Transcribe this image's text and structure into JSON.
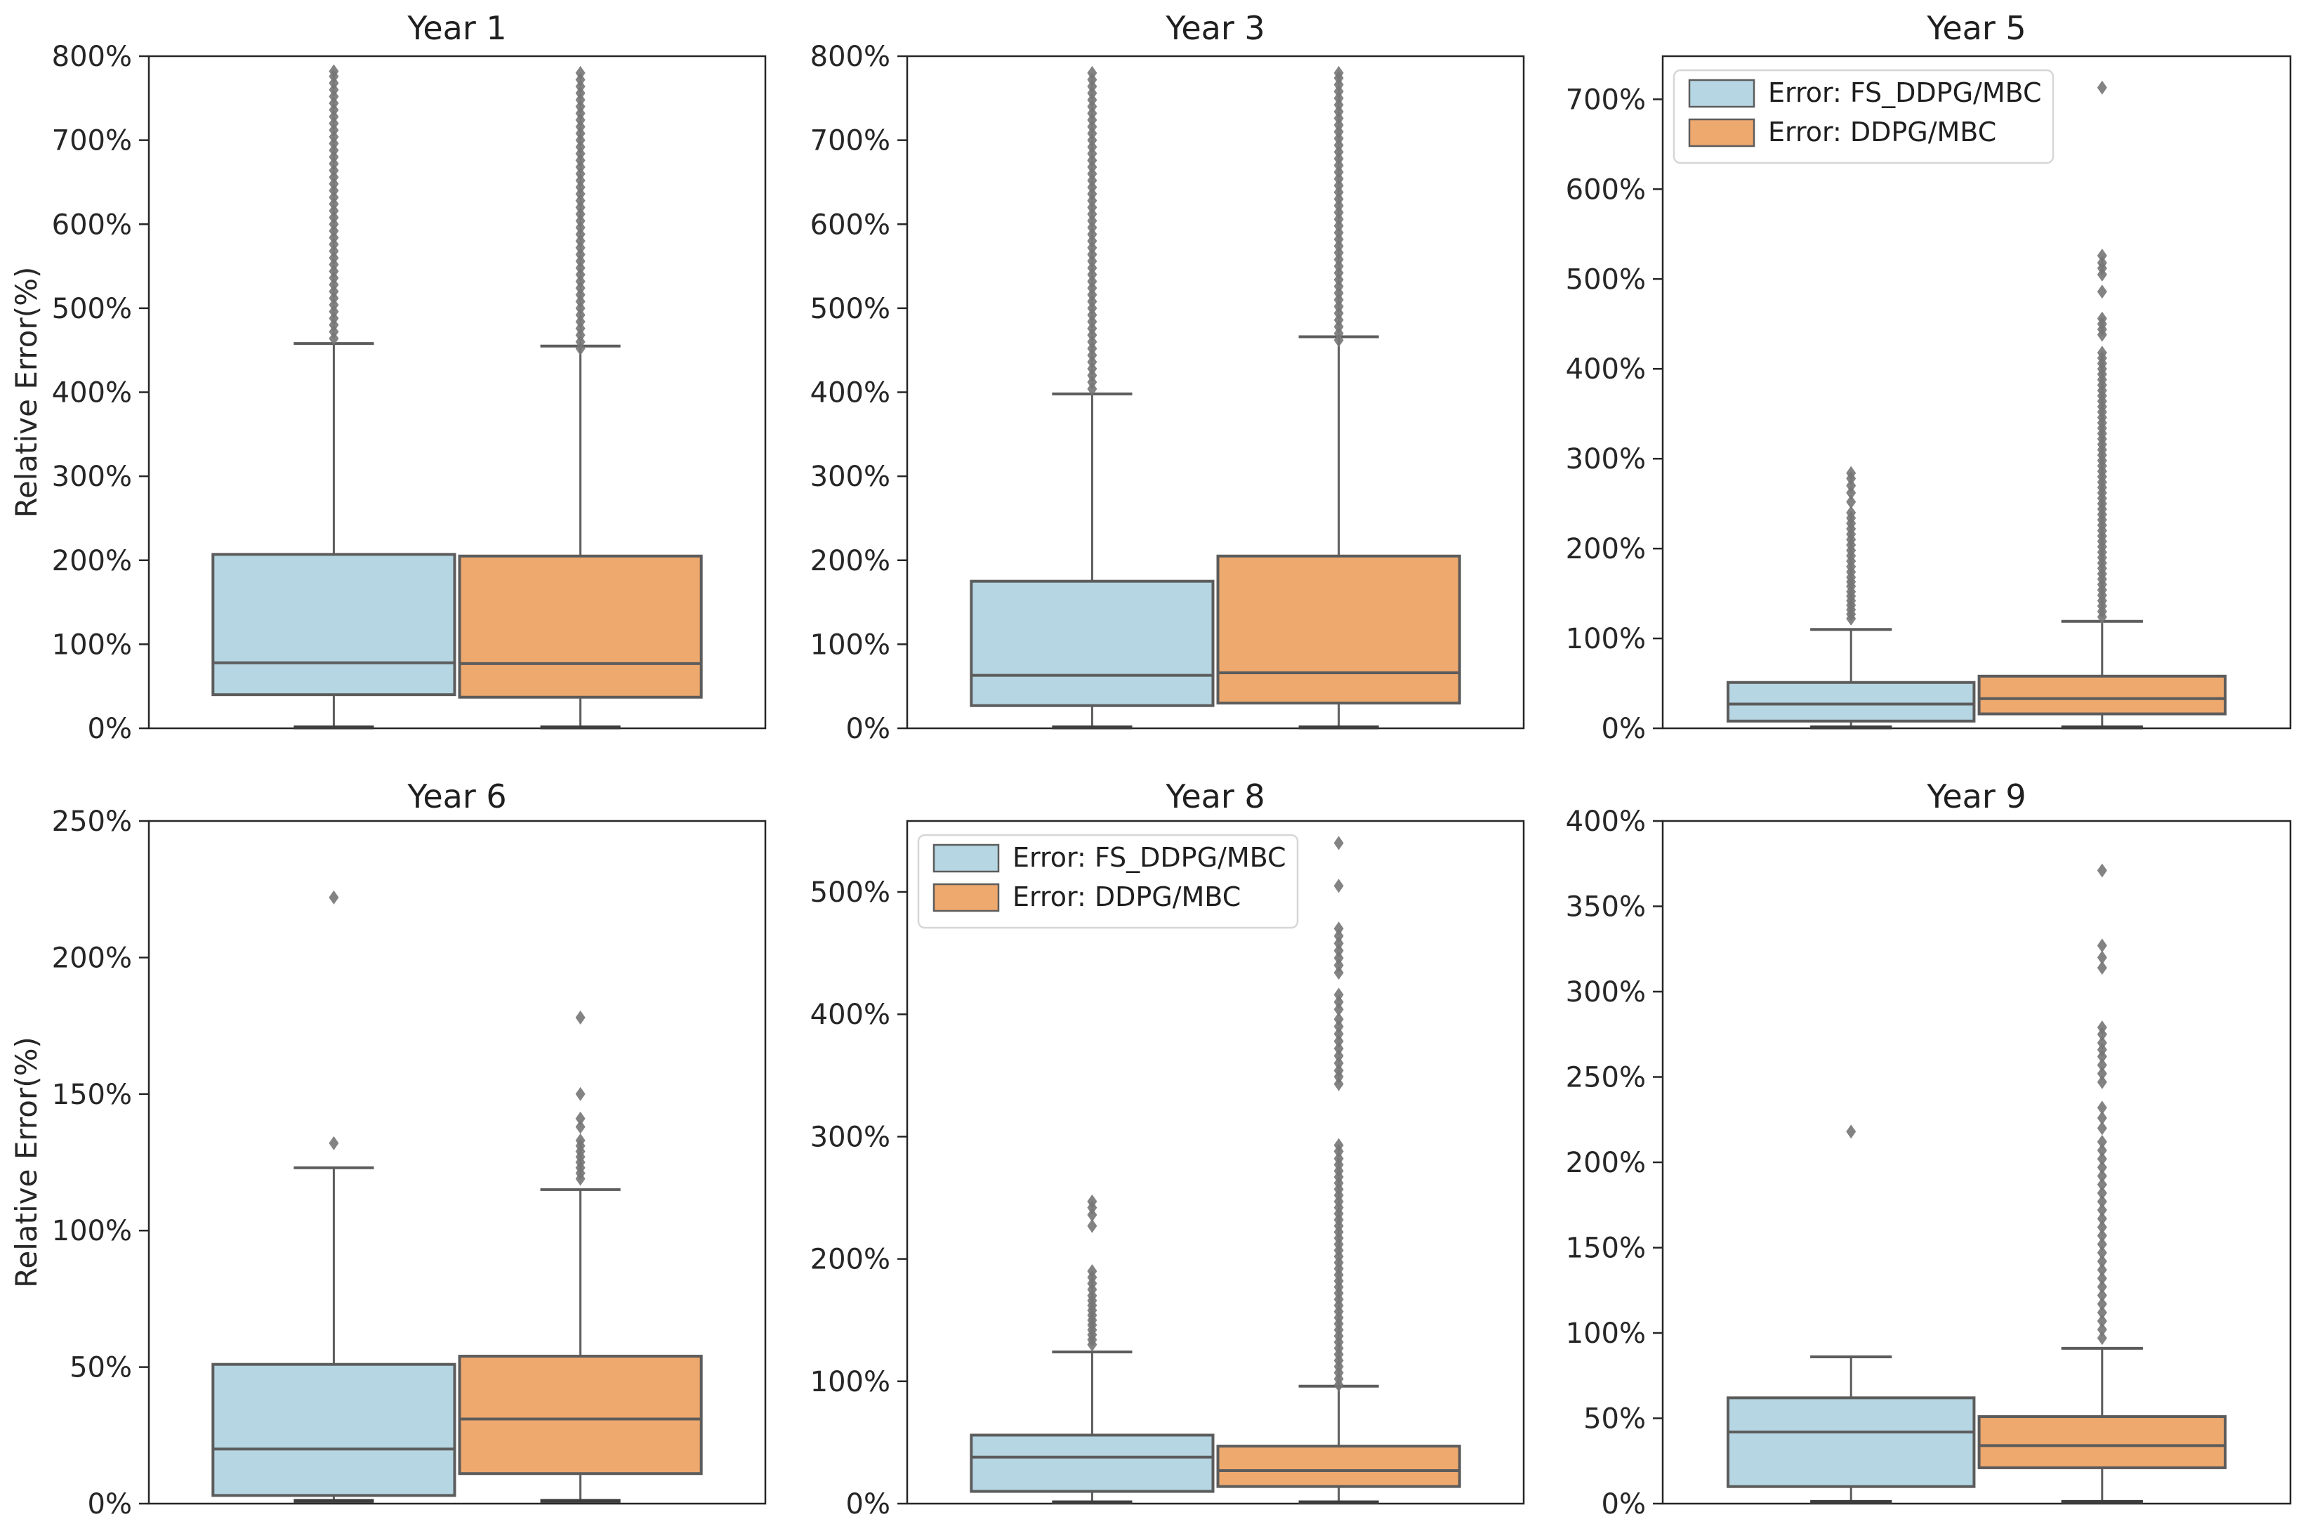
{
  "figure": {
    "kind": "boxplot-grid",
    "rows": 2,
    "cols": 3,
    "background": "#ffffff",
    "y_axis_label": "Relative Error(%)"
  },
  "colors": {
    "series_fs_ddpg_fill": "#B5D6E2",
    "series_ddpg_fill": "#EEA96E",
    "box_edge": "#5C5C5C",
    "whisker": "#5C5C5C",
    "median": "#5C5C5C",
    "bottom_cap": "#3D3D3D",
    "outlier": "#757575",
    "spine": "#262626",
    "text": "#262626",
    "legend_border": "#D6D6D6",
    "legend_background": "#FFFFFF"
  },
  "legend": {
    "position": "upper-left",
    "entries": [
      {
        "label": "Error: FS_DDPG/MBC",
        "swatch_color": "#B5D6E2"
      },
      {
        "label": "Error: DDPG/MBC",
        "swatch_color": "#EEA96E"
      }
    ]
  },
  "chart_data": [
    {
      "type": "box",
      "title": "Year 1",
      "ylabel": "Relative Error(%)",
      "ylim": [
        0,
        800
      ],
      "yticks": [
        0,
        100,
        200,
        300,
        400,
        500,
        600,
        700,
        800
      ],
      "ytick_labels": [
        "0%",
        "100%",
        "200%",
        "300%",
        "400%",
        "500%",
        "600%",
        "700%",
        "800%"
      ],
      "show_legend": false,
      "series": [
        {
          "name": "Error: FS_DDPG/MBC",
          "fill": "#B5D6E2",
          "whisker_low": 1,
          "q1": 40,
          "median": 78,
          "q3": 207,
          "whisker_high": 458,
          "outliers": [
            464,
            472,
            480,
            488,
            496,
            504,
            512,
            520,
            528,
            536,
            544,
            552,
            560,
            568,
            576,
            584,
            592,
            600,
            608,
            616,
            624,
            632,
            640,
            648,
            656,
            664,
            672,
            680,
            688,
            696,
            704,
            712,
            720,
            728,
            736,
            744,
            752,
            760,
            768,
            776,
            782
          ]
        },
        {
          "name": "Error: DDPG/MBC",
          "fill": "#EEA96E",
          "whisker_low": 1,
          "q1": 37,
          "median": 77,
          "q3": 205,
          "whisker_high": 455,
          "outliers": [
            452,
            460,
            468,
            476,
            484,
            492,
            500,
            508,
            516,
            524,
            532,
            540,
            548,
            556,
            564,
            572,
            580,
            588,
            596,
            604,
            612,
            620,
            628,
            636,
            644,
            652,
            660,
            668,
            676,
            684,
            692,
            700,
            708,
            716,
            724,
            732,
            740,
            748,
            756,
            764,
            772,
            780
          ]
        }
      ]
    },
    {
      "type": "box",
      "title": "Year 3",
      "ylabel": "",
      "ylim": [
        0,
        800
      ],
      "yticks": [
        0,
        100,
        200,
        300,
        400,
        500,
        600,
        700,
        800
      ],
      "ytick_labels": [
        "0%",
        "100%",
        "200%",
        "300%",
        "400%",
        "500%",
        "600%",
        "700%",
        "800%"
      ],
      "show_legend": false,
      "series": [
        {
          "name": "Error: FS_DDPG/MBC",
          "fill": "#B5D6E2",
          "whisker_low": 1,
          "q1": 27,
          "median": 63,
          "q3": 175,
          "whisker_high": 398,
          "outliers": [
            404,
            412,
            420,
            428,
            436,
            444,
            452,
            460,
            468,
            476,
            484,
            492,
            500,
            508,
            516,
            524,
            532,
            540,
            548,
            556,
            564,
            572,
            580,
            588,
            596,
            604,
            612,
            620,
            628,
            636,
            644,
            652,
            660,
            668,
            676,
            684,
            692,
            700,
            708,
            716,
            724,
            732,
            740,
            748,
            756,
            764,
            772,
            780
          ]
        },
        {
          "name": "Error: DDPG/MBC",
          "fill": "#EEA96E",
          "whisker_low": 1,
          "q1": 30,
          "median": 66,
          "q3": 205,
          "whisker_high": 466,
          "outliers": [
            462,
            470,
            478,
            486,
            494,
            502,
            510,
            518,
            526,
            534,
            542,
            550,
            558,
            566,
            574,
            582,
            590,
            598,
            606,
            614,
            622,
            630,
            638,
            646,
            654,
            662,
            670,
            678,
            686,
            694,
            702,
            710,
            718,
            726,
            734,
            742,
            750,
            758,
            766,
            774,
            780
          ]
        }
      ]
    },
    {
      "type": "box",
      "title": "Year 5",
      "ylabel": "",
      "ylim": [
        0,
        748
      ],
      "yticks": [
        0,
        100,
        200,
        300,
        400,
        500,
        600,
        700
      ],
      "ytick_labels": [
        "0%",
        "100%",
        "200%",
        "300%",
        "400%",
        "500%",
        "600%",
        "700%"
      ],
      "show_legend": true,
      "series": [
        {
          "name": "Error: FS_DDPG/MBC",
          "fill": "#B5D6E2",
          "whisker_low": 1,
          "q1": 8,
          "median": 27,
          "q3": 51,
          "whisker_high": 110,
          "outliers": [
            122,
            127,
            132,
            137,
            142,
            147,
            152,
            158,
            163,
            168,
            174,
            180,
            186,
            192,
            198,
            204,
            210,
            216,
            222,
            228,
            234,
            240,
            252,
            262,
            270,
            278,
            284
          ]
        },
        {
          "name": "Error: DDPG/MBC",
          "fill": "#EEA96E",
          "whisker_low": 1,
          "q1": 16,
          "median": 33,
          "q3": 58,
          "whisker_high": 119,
          "outliers": [
            124,
            130,
            136,
            142,
            148,
            154,
            160,
            166,
            172,
            178,
            184,
            190,
            196,
            202,
            208,
            214,
            220,
            226,
            232,
            238,
            244,
            250,
            256,
            262,
            268,
            274,
            280,
            286,
            292,
            298,
            304,
            310,
            316,
            322,
            328,
            334,
            340,
            346,
            352,
            358,
            364,
            370,
            376,
            382,
            388,
            394,
            400,
            406,
            412,
            418,
            438,
            444,
            450,
            456,
            486,
            505,
            512,
            518,
            526,
            713
          ]
        }
      ]
    },
    {
      "type": "box",
      "title": "Year 6",
      "ylabel": "Relative Error(%)",
      "ylim": [
        0,
        250
      ],
      "yticks": [
        0,
        50,
        100,
        150,
        200,
        250
      ],
      "ytick_labels": [
        "0%",
        "50%",
        "100%",
        "150%",
        "200%",
        "250%"
      ],
      "show_legend": false,
      "series": [
        {
          "name": "Error: FS_DDPG/MBC",
          "fill": "#B5D6E2",
          "whisker_low": 1,
          "q1": 3,
          "median": 20,
          "q3": 51,
          "whisker_high": 123,
          "outliers": [
            132,
            222
          ]
        },
        {
          "name": "Error: DDPG/MBC",
          "fill": "#EEA96E",
          "whisker_low": 1,
          "q1": 11,
          "median": 31,
          "q3": 54,
          "whisker_high": 115,
          "outliers": [
            119,
            121,
            123,
            125,
            127,
            129,
            131,
            133,
            138,
            141,
            150,
            178
          ]
        }
      ]
    },
    {
      "type": "box",
      "title": "Year 8",
      "ylabel": "",
      "ylim": [
        0,
        558
      ],
      "yticks": [
        0,
        100,
        200,
        300,
        400,
        500
      ],
      "ytick_labels": [
        "0%",
        "100%",
        "200%",
        "300%",
        "400%",
        "500%"
      ],
      "show_legend": true,
      "series": [
        {
          "name": "Error: FS_DDPG/MBC",
          "fill": "#B5D6E2",
          "whisker_low": 1,
          "q1": 10,
          "median": 38,
          "q3": 56,
          "whisker_high": 124,
          "outliers": [
            130,
            134,
            138,
            142,
            146,
            150,
            154,
            158,
            162,
            166,
            170,
            175,
            180,
            185,
            190,
            227,
            236,
            242,
            247
          ]
        },
        {
          "name": "Error: DDPG/MBC",
          "fill": "#EEA96E",
          "whisker_low": 1,
          "q1": 14,
          "median": 27,
          "q3": 47,
          "whisker_high": 96,
          "outliers": [
            97,
            102,
            107,
            112,
            117,
            122,
            127,
            132,
            137,
            142,
            147,
            152,
            157,
            162,
            167,
            172,
            177,
            182,
            187,
            192,
            197,
            202,
            207,
            212,
            217,
            222,
            227,
            232,
            237,
            242,
            247,
            252,
            257,
            262,
            267,
            272,
            277,
            282,
            288,
            293,
            343,
            349,
            354,
            360,
            366,
            372,
            378,
            384,
            390,
            396,
            404,
            410,
            416,
            434,
            440,
            446,
            452,
            458,
            464,
            470,
            505,
            540
          ]
        }
      ]
    },
    {
      "type": "box",
      "title": "Year 9",
      "ylabel": "",
      "ylim": [
        0,
        400
      ],
      "yticks": [
        0,
        50,
        100,
        150,
        200,
        250,
        300,
        350,
        400
      ],
      "ytick_labels": [
        "0%",
        "50%",
        "100%",
        "150%",
        "200%",
        "250%",
        "300%",
        "350%",
        "400%"
      ],
      "show_legend": false,
      "series": [
        {
          "name": "Error: FS_DDPG/MBC",
          "fill": "#B5D6E2",
          "whisker_low": 1,
          "q1": 10,
          "median": 42,
          "q3": 62,
          "whisker_high": 86,
          "outliers": [
            218
          ]
        },
        {
          "name": "Error: DDPG/MBC",
          "fill": "#EEA96E",
          "whisker_low": 1,
          "q1": 21,
          "median": 34,
          "q3": 51,
          "whisker_high": 91,
          "outliers": [
            97,
            102,
            107,
            112,
            117,
            122,
            127,
            132,
            137,
            142,
            147,
            152,
            157,
            162,
            167,
            172,
            177,
            182,
            187,
            192,
            197,
            202,
            207,
            212,
            220,
            226,
            232,
            247,
            252,
            257,
            262,
            266,
            270,
            275,
            279,
            314,
            320,
            327,
            371
          ]
        }
      ]
    }
  ]
}
